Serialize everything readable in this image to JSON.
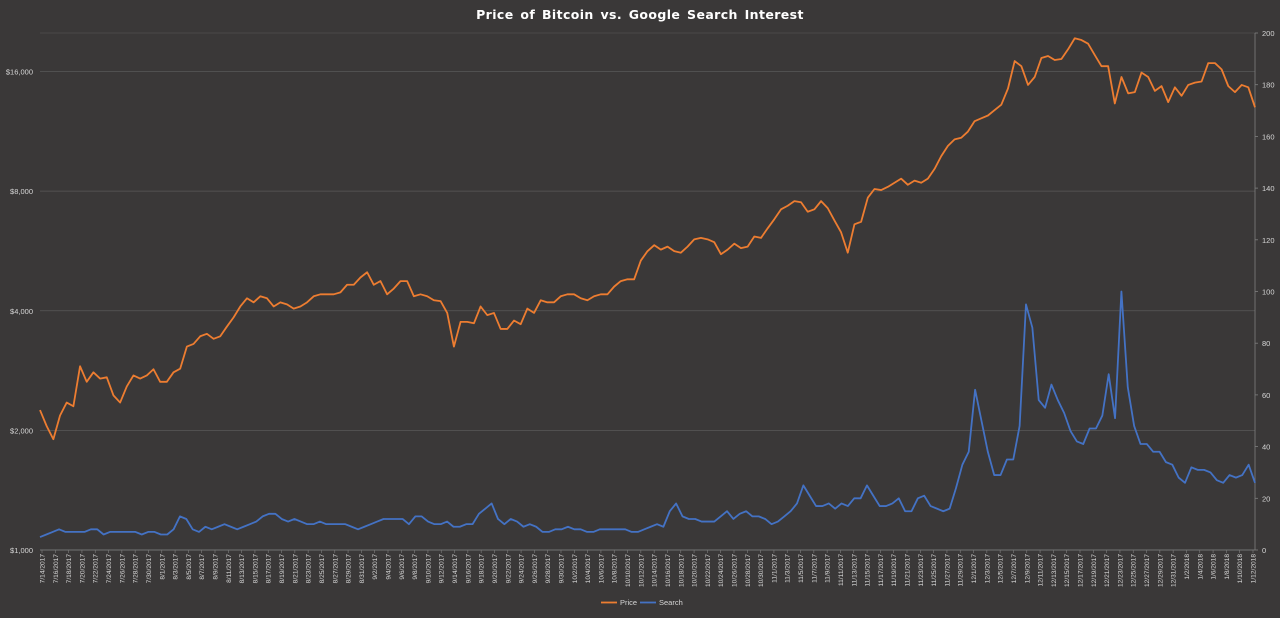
{
  "chart_data": {
    "type": "line",
    "title": "Price  of Bitcoin  vs.  Google  Search  Interest",
    "left_axis": {
      "scale": "log2",
      "ylim": [
        1000,
        20000
      ],
      "ticks": [
        1000,
        2000,
        4000,
        8000,
        16000
      ],
      "tick_labels": [
        "$1,000",
        "$2,000",
        "$4,000",
        "$8,000",
        "$16,000"
      ]
    },
    "right_axis": {
      "scale": "linear",
      "ylim": [
        0,
        200
      ],
      "ticks": [
        0,
        20,
        40,
        60,
        80,
        100,
        120,
        140,
        160,
        180,
        200
      ],
      "tick_labels": [
        "0",
        "20",
        "40",
        "60",
        "80",
        "100",
        "120",
        "140",
        "160",
        "180",
        "200"
      ]
    },
    "x_labels": [
      "7/14/2017",
      "7/16/2017",
      "7/18/2017",
      "7/20/2017",
      "7/22/2017",
      "7/24/2017",
      "7/26/2017",
      "7/28/2017",
      "7/30/2017",
      "8/1/2017",
      "8/3/2017",
      "8/5/2017",
      "8/7/2017",
      "8/9/2017",
      "8/11/2017",
      "8/13/2017",
      "8/15/2017",
      "8/17/2017",
      "8/19/2017",
      "8/21/2017",
      "8/23/2017",
      "8/25/2017",
      "8/27/2017",
      "8/29/2017",
      "8/31/2017",
      "9/2/2017",
      "9/4/2017",
      "9/6/2017",
      "9/8/2017",
      "9/10/2017",
      "9/12/2017",
      "9/14/2017",
      "9/16/2017",
      "9/18/2017",
      "9/20/2017",
      "9/22/2017",
      "9/24/2017",
      "9/26/2017",
      "9/28/2017",
      "9/30/2017",
      "10/2/2017",
      "10/4/2017",
      "10/6/2017",
      "10/8/2017",
      "10/10/2017",
      "10/12/2017",
      "10/14/2017",
      "10/16/2017",
      "10/18/2017",
      "10/20/2017",
      "10/22/2017",
      "10/24/2017",
      "10/26/2017",
      "10/28/2017",
      "10/30/2017",
      "11/1/2017",
      "11/3/2017",
      "11/5/2017",
      "11/7/2017",
      "11/9/2017",
      "11/11/2017",
      "11/13/2017",
      "11/15/2017",
      "11/17/2017",
      "11/19/2017",
      "11/21/2017",
      "11/23/2017",
      "11/25/2017",
      "11/27/2017",
      "11/29/2017",
      "12/1/2017",
      "12/3/2017",
      "12/5/2017",
      "12/7/2017",
      "12/9/2017",
      "12/11/2017",
      "12/13/2017",
      "12/15/2017",
      "12/17/2017",
      "12/19/2017",
      "12/21/2017",
      "12/23/2017",
      "12/25/2017",
      "12/27/2017",
      "12/29/2017",
      "12/31/2017",
      "1/2/2018",
      "1/4/2018",
      "1/6/2018",
      "1/8/2018",
      "1/10/2018",
      "1/12/2018"
    ],
    "series": [
      {
        "name": "Price",
        "color": "#ed7d31",
        "axis": "left",
        "values": [
          2250,
          2050,
          1900,
          2180,
          2350,
          2300,
          2900,
          2650,
          2800,
          2700,
          2720,
          2450,
          2350,
          2580,
          2750,
          2700,
          2750,
          2850,
          2650,
          2650,
          2800,
          2860,
          3250,
          3300,
          3450,
          3500,
          3400,
          3450,
          3650,
          3850,
          4100,
          4300,
          4200,
          4350,
          4300,
          4100,
          4200,
          4150,
          4050,
          4100,
          4200,
          4350,
          4400,
          4400,
          4400,
          4450,
          4650,
          4650,
          4850,
          5000,
          4650,
          4750,
          4400,
          4550,
          4750,
          4750,
          4350,
          4400,
          4350,
          4250,
          4230,
          3950,
          3250,
          3750,
          3750,
          3720,
          4100,
          3900,
          3950,
          3600,
          3600,
          3780,
          3700,
          4050,
          3950,
          4250,
          4200,
          4200,
          4350,
          4400,
          4400,
          4300,
          4250,
          4350,
          4400,
          4400,
          4600,
          4750,
          4800,
          4800,
          5350,
          5650,
          5850,
          5700,
          5800,
          5650,
          5600,
          5800,
          6050,
          6100,
          6050,
          5950,
          5550,
          5700,
          5900,
          5750,
          5800,
          6150,
          6100,
          6450,
          6800,
          7200,
          7350,
          7550,
          7500,
          7100,
          7200,
          7550,
          7250,
          6750,
          6300,
          5600,
          6600,
          6700,
          7700,
          8100,
          8050,
          8200,
          8400,
          8600,
          8300,
          8500,
          8400,
          8600,
          9100,
          9800,
          10400,
          10800,
          10900,
          11300,
          12000,
          12200,
          12400,
          12800,
          13200,
          14500,
          17000,
          16500,
          14800,
          15500,
          17300,
          17500,
          17100,
          17200,
          18200,
          19400,
          19200,
          18800,
          17600,
          16500,
          16500,
          13300,
          15500,
          14100,
          14200,
          15900,
          15500,
          14300,
          14700,
          13400,
          14600,
          13900,
          14800,
          15000,
          15100,
          16800,
          16800,
          16200,
          14700,
          14200,
          14800,
          14600,
          13000
        ],
        "x_scale_note": "values sampled evenly across the date range 7/14/2017 to 1/12/2018"
      },
      {
        "name": "Search",
        "color": "#4472c4",
        "axis": "right",
        "values": [
          5,
          6,
          7,
          8,
          7,
          7,
          7,
          7,
          8,
          8,
          6,
          7,
          7,
          7,
          7,
          7,
          6,
          7,
          7,
          6,
          6,
          8,
          13,
          12,
          8,
          7,
          9,
          8,
          9,
          10,
          9,
          8,
          9,
          10,
          11,
          13,
          14,
          14,
          12,
          11,
          12,
          11,
          10,
          10,
          11,
          10,
          10,
          10,
          10,
          9,
          8,
          9,
          10,
          11,
          12,
          12,
          12,
          12,
          10,
          13,
          13,
          11,
          10,
          10,
          11,
          9,
          9,
          10,
          10,
          14,
          16,
          18,
          12,
          10,
          12,
          11,
          9,
          10,
          9,
          7,
          7,
          8,
          8,
          9,
          8,
          8,
          7,
          7,
          8,
          8,
          8,
          8,
          8,
          7,
          7,
          8,
          9,
          10,
          9,
          15,
          18,
          13,
          12,
          12,
          11,
          11,
          11,
          13,
          15,
          12,
          14,
          15,
          13,
          13,
          12,
          10,
          11,
          13,
          15,
          18,
          25,
          21,
          17,
          17,
          18,
          16,
          18,
          17,
          20,
          20,
          25,
          21,
          17,
          17,
          18,
          20,
          15,
          15,
          20,
          21,
          17,
          16,
          15,
          16,
          24,
          33,
          38,
          62,
          50,
          38,
          29,
          29,
          35,
          35,
          48,
          95,
          86,
          58,
          55,
          64,
          58,
          53,
          46,
          42,
          41,
          47,
          47,
          52,
          68,
          51,
          100,
          63,
          48,
          41,
          41,
          38,
          38,
          34,
          33,
          28,
          26,
          32,
          31,
          31,
          30,
          27,
          26,
          29,
          28,
          29,
          33,
          26
        ]
      }
    ],
    "legend": {
      "position": "bottom-center",
      "items": [
        "Price",
        "Search"
      ]
    },
    "grid": {
      "horizontal": true,
      "vertical": false
    }
  },
  "colors": {
    "background": "#3a3838",
    "gridline": "#595959",
    "text": "#d6d6d6",
    "title": "#ffffff"
  }
}
